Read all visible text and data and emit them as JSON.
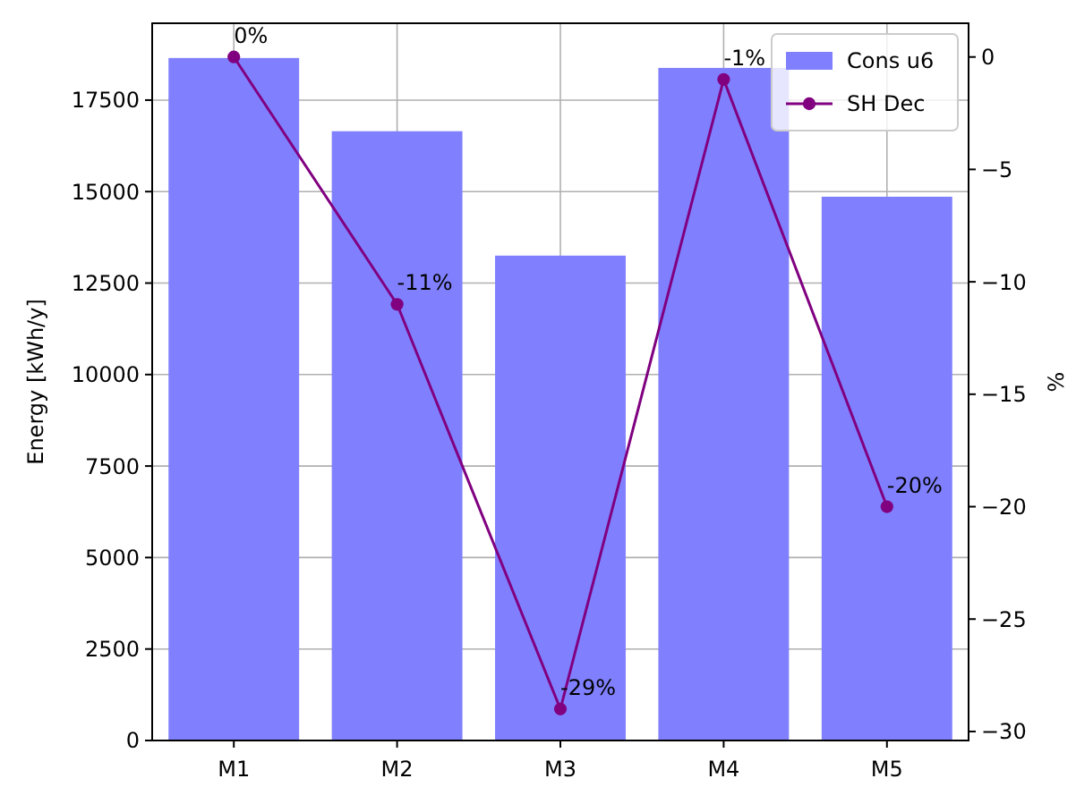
{
  "chart_data": {
    "type": "bar",
    "ylabel": "Energy [kWh/y]",
    "y2label": "%",
    "categories": [
      "M1",
      "M2",
      "M3",
      "M4",
      "M5"
    ],
    "series": [
      {
        "name": "Cons u6",
        "color": "#8080ff",
        "values": [
          18650,
          16650,
          13250,
          18380,
          14860
        ]
      },
      {
        "name": "SH Dec",
        "type": "line",
        "axis": "y2",
        "color": "#800080",
        "values": [
          0,
          -11,
          -29,
          -1,
          -20
        ],
        "value_labels": [
          "0%",
          "-11%",
          "-29%",
          "-1%",
          "-20%"
        ]
      }
    ],
    "ylim": [
      0,
      19600
    ],
    "yticks": [
      0,
      2500,
      5000,
      7500,
      10000,
      12500,
      15000,
      17500
    ],
    "y2lim": [
      -30.4,
      1.5
    ],
    "y2ticks": [
      -30,
      -25,
      -20,
      -15,
      -10,
      -5,
      0
    ],
    "grid": true,
    "legend": "top right",
    "marker": "circle"
  }
}
